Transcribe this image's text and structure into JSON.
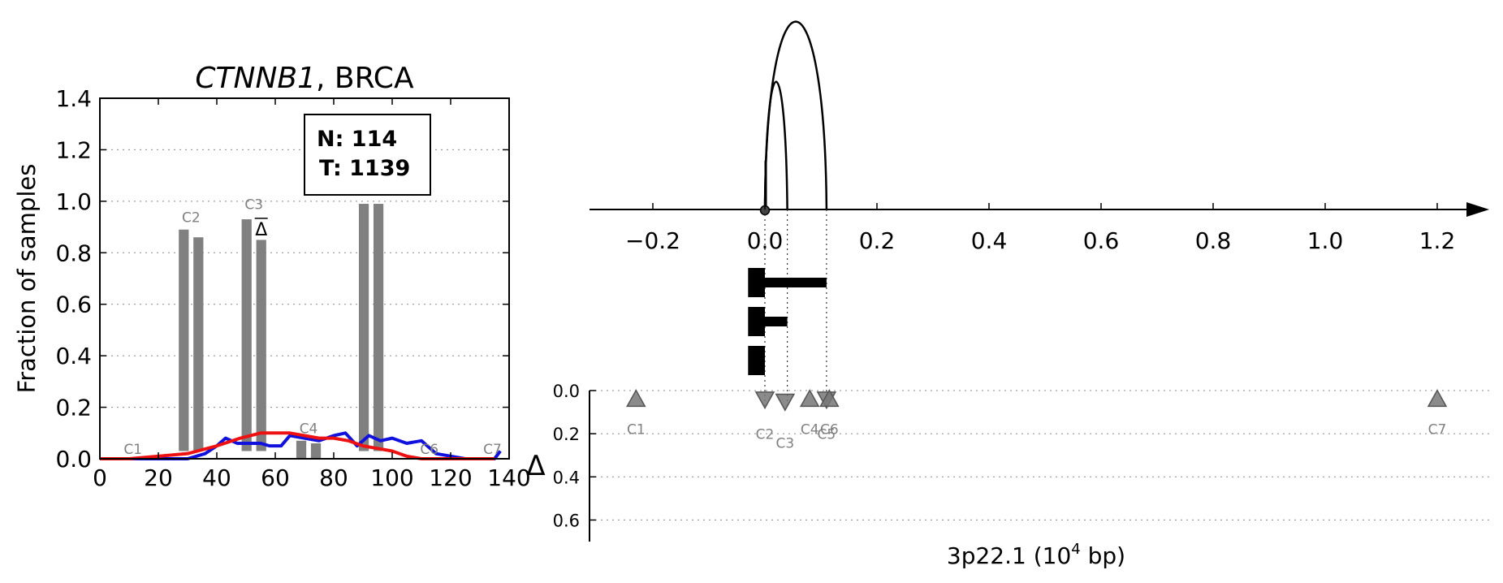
{
  "chart_data": [
    {
      "type": "bar",
      "title_gene": "CTNNB1",
      "title_rest": ", BRCA",
      "ylabel": "Fraction of samples",
      "xlim": [
        0,
        140
      ],
      "ylim": [
        0,
        1.4
      ],
      "xticks": [
        "0",
        "20",
        "40",
        "60",
        "80",
        "100",
        "120",
        "140"
      ],
      "yticks": [
        "0.0",
        "0.2",
        "0.4",
        "0.6",
        "0.8",
        "1.0",
        "1.2",
        "1.4"
      ],
      "grid": "horizontal-dotted",
      "legend_box": {
        "line1": "N: 114",
        "line2": "T: 1139",
        "placement": "top-right"
      },
      "bars": [
        {
          "x": 28.7,
          "value": 0.89,
          "bottom": 0.03
        },
        {
          "x": 33.7,
          "value": 0.86,
          "bottom": 0.03
        },
        {
          "x": 50.2,
          "value": 0.93,
          "bottom": 0.03
        },
        {
          "x": 55.2,
          "value": 0.85,
          "bottom": 0.03
        },
        {
          "x": 68.9,
          "value": 0.07,
          "bottom": 0.0
        },
        {
          "x": 73.9,
          "value": 0.06,
          "bottom": 0.0
        },
        {
          "x": 90.3,
          "value": 0.99,
          "bottom": 0.03
        },
        {
          "x": 95.3,
          "value": 0.99,
          "bottom": 0.03
        }
      ],
      "bar_labels": [
        {
          "text": "C1",
          "x": 11.3,
          "y": 0.0
        },
        {
          "text": "C2",
          "x": 31.2,
          "y": 0.9
        },
        {
          "text": "C3",
          "x": 52.7,
          "y": 0.95
        },
        {
          "text": "C4",
          "x": 71.4,
          "y": 0.08
        },
        {
          "text": "C6",
          "x": 112.7,
          "y": 0.0
        },
        {
          "text": "C7",
          "x": 134.3,
          "y": 0.0
        }
      ],
      "delta_marker": {
        "text": "Δ",
        "x": 55.2,
        "y": 0.88
      },
      "series": [
        {
          "color": "#1111dd",
          "x": [
            0,
            10,
            20,
            30,
            36,
            40,
            43,
            47,
            50,
            55,
            58,
            62,
            65,
            70,
            75,
            80,
            84,
            88,
            92,
            96,
            100,
            105,
            110,
            115,
            120,
            125,
            130,
            135,
            137
          ],
          "y": [
            0.0,
            0.0,
            0.0,
            0.0,
            0.02,
            0.05,
            0.08,
            0.06,
            0.06,
            0.06,
            0.05,
            0.05,
            0.09,
            0.08,
            0.07,
            0.09,
            0.1,
            0.05,
            0.09,
            0.07,
            0.08,
            0.06,
            0.07,
            0.02,
            0.01,
            0.0,
            0.0,
            0.0,
            0.03
          ]
        },
        {
          "color": "#ee1111",
          "x": [
            0,
            10,
            20,
            30,
            40,
            48,
            55,
            60,
            65,
            70,
            75,
            80,
            85,
            90,
            95,
            100,
            105,
            110,
            115,
            120,
            125,
            130,
            135
          ],
          "y": [
            0.0,
            0.0,
            0.01,
            0.02,
            0.05,
            0.08,
            0.1,
            0.1,
            0.1,
            0.09,
            0.08,
            0.08,
            0.07,
            0.05,
            0.04,
            0.03,
            0.01,
            0.0,
            0.0,
            0.0,
            0.0,
            0.0,
            0.0
          ]
        }
      ]
    },
    {
      "type": "scatter",
      "xlabel_main": "3p22.1 (10",
      "xlabel_sup": "4",
      "xlabel_tail": " bp)",
      "top_xlim": [
        -0.31,
        1.31
      ],
      "top_xticks": [
        {
          "label": "−0.2",
          "value": -0.2
        },
        {
          "label": "0.0",
          "value": 0.0
        },
        {
          "label": "0.2",
          "value": 0.2
        },
        {
          "label": "0.4",
          "value": 0.4
        },
        {
          "label": "0.6",
          "value": 0.6
        },
        {
          "label": "0.8",
          "value": 0.8
        },
        {
          "label": "1.0",
          "value": 1.0
        },
        {
          "label": "1.2",
          "value": 1.2
        }
      ],
      "arcs": [
        {
          "start": 0.0,
          "end": 0.04,
          "height": 0.68
        },
        {
          "start": 0.0,
          "end": 0.11,
          "height": 1.0
        }
      ],
      "origin_tick": {
        "x": 0.0,
        "height": 0.26
      },
      "vertical_lines": [
        0.0,
        0.04,
        0.11
      ],
      "bars": [
        {
          "thick_start": -0.03,
          "thick_end": 0.0,
          "thin_end": 0.11
        },
        {
          "thick_start": -0.03,
          "thick_end": 0.0,
          "thin_end": 0.04
        },
        {
          "thick_start": -0.03,
          "thick_end": 0.0,
          "thin_end": 0.0
        }
      ],
      "delta_ylabel": "Δ",
      "delta_ylim": [
        0.0,
        0.7
      ],
      "delta_yticks": [
        "0.0",
        "0.2",
        "0.4",
        "0.6"
      ],
      "markers": [
        {
          "label": "C1",
          "x": -0.23,
          "delta": 0.04,
          "direction": "up"
        },
        {
          "label": "C2",
          "x": 0.0,
          "delta": 0.04,
          "direction": "down"
        },
        {
          "label": "C3",
          "x": 0.036,
          "delta": 0.05,
          "direction": "down"
        },
        {
          "label": "C4",
          "x": 0.08,
          "delta": 0.04,
          "direction": "up"
        },
        {
          "label": "C5",
          "x": 0.11,
          "delta": 0.04,
          "direction": "down"
        },
        {
          "label": "C6",
          "x": 0.115,
          "delta": 0.04,
          "direction": "up"
        },
        {
          "label": "C7",
          "x": 1.2,
          "delta": 0.04,
          "direction": "up"
        }
      ],
      "marker_color": "#777777"
    }
  ]
}
